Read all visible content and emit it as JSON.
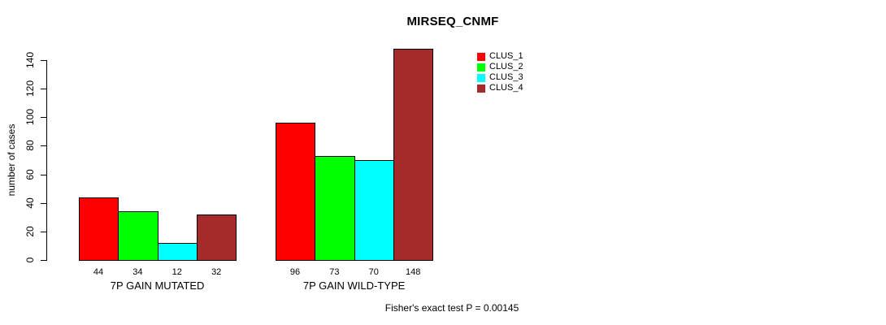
{
  "title": "MIRSEQ_CNMF",
  "ylabel": "number of cases",
  "footer": "Fisher's exact test P = 0.00145",
  "legend": {
    "entries": [
      {
        "label": "CLUS_1",
        "color": "#ff0000"
      },
      {
        "label": "CLUS_2",
        "color": "#00ff00"
      },
      {
        "label": "CLUS_3",
        "color": "#00ffff"
      },
      {
        "label": "CLUS_4",
        "color": "#a52a2a"
      }
    ]
  },
  "chart_data": {
    "type": "bar",
    "title": "MIRSEQ_CNMF",
    "xlabel": "",
    "ylabel": "number of cases",
    "categories": [
      "7P GAIN MUTATED",
      "7P GAIN WILD-TYPE"
    ],
    "series": [
      {
        "name": "CLUS_1",
        "color": "#ff0000",
        "values": [
          44,
          96
        ]
      },
      {
        "name": "CLUS_2",
        "color": "#00ff00",
        "values": [
          34,
          73
        ]
      },
      {
        "name": "CLUS_3",
        "color": "#00ffff",
        "values": [
          12,
          70
        ]
      },
      {
        "name": "CLUS_4",
        "color": "#a52a2a",
        "values": [
          32,
          148
        ]
      }
    ],
    "bar_value_labels": [
      [
        44,
        34,
        12,
        32
      ],
      [
        96,
        73,
        70,
        148
      ]
    ],
    "yticks": [
      0,
      20,
      40,
      60,
      80,
      100,
      120,
      140
    ],
    "ylim": [
      0,
      148
    ],
    "grid": false,
    "legend_position": "top-right-inside",
    "annotation": "Fisher's exact test P = 0.00145"
  }
}
